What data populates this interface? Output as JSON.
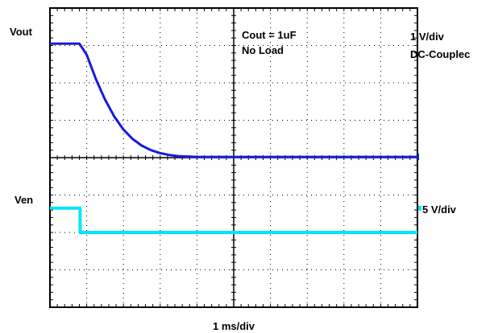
{
  "chart_data": {
    "type": "line",
    "title": "",
    "xlabel": "1 ms/div",
    "grid": true,
    "x_divisions": 10,
    "y_divisions": 8,
    "annotations": [
      "Cout = 1uF",
      "No Load"
    ],
    "series": [
      {
        "name": "Vout",
        "scale": "1 V/div",
        "coupling": "DC-Coupled",
        "visible_label": "DC-Couplec",
        "color": "#1a1adc",
        "x": [
          0,
          0.5,
          0.8,
          1,
          1.25,
          1.5,
          1.75,
          2,
          2.25,
          2.5,
          2.75,
          3,
          3.25,
          3.5,
          4,
          4.5,
          5,
          6,
          7,
          8,
          9,
          10
        ],
        "y": [
          7.05,
          7.05,
          7.05,
          6.75,
          6.1,
          5.55,
          5.1,
          4.75,
          4.5,
          4.32,
          4.2,
          4.12,
          4.07,
          4.04,
          4.02,
          4.02,
          4.02,
          4.02,
          4.02,
          4.02,
          4.02,
          4.02
        ]
      },
      {
        "name": "Ven",
        "scale": "5 V/div",
        "color": "#00e5ff",
        "x": [
          0,
          0.82,
          0.82,
          10
        ],
        "y": [
          2.65,
          2.65,
          2.0,
          2.0
        ]
      }
    ]
  }
}
